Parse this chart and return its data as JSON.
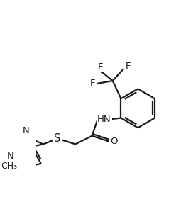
{
  "background_color": "#ffffff",
  "line_color": "#1a1a1a",
  "line_width": 1.6,
  "font_size": 9.5,
  "figsize": [
    2.48,
    3.12
  ],
  "dpi": 100,
  "xlim": [
    0,
    248
  ],
  "ylim": [
    0,
    312
  ]
}
